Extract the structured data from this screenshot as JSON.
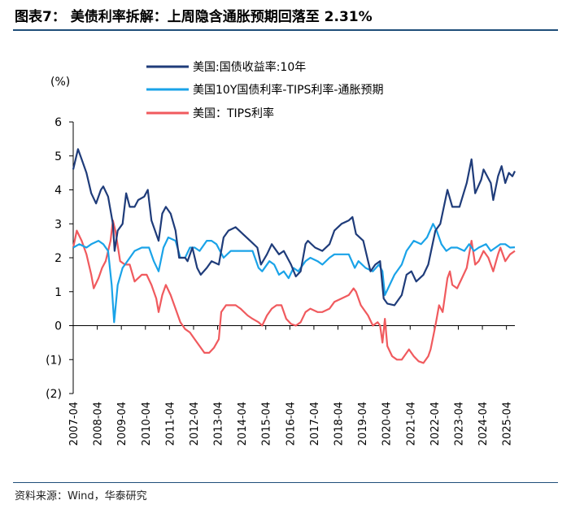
{
  "title": "图表7：  美债利率拆解：上周隐含通胀预期回落至 2.31%",
  "source": "资料来源：Wind，华泰研究",
  "chart_data": {
    "type": "line",
    "ylabel": "(%)",
    "ylim": [
      -2,
      6
    ],
    "yticks": [
      6,
      5,
      4,
      3,
      2,
      1,
      0,
      -1,
      -2
    ],
    "ytick_labels": [
      "6",
      "5",
      "4",
      "3",
      "2",
      "1",
      "0",
      "(1)",
      "(2)"
    ],
    "xlim": [
      2007.25,
      2025.6
    ],
    "xticks": [
      "2007-04",
      "2008-04",
      "2009-04",
      "2010-04",
      "2011-04",
      "2012-04",
      "2013-04",
      "2014-04",
      "2015-04",
      "2016-04",
      "2017-04",
      "2018-04",
      "2019-04",
      "2020-04",
      "2021-04",
      "2022-04",
      "2023-04",
      "2024-04",
      "2025-04"
    ],
    "legend_position": "top-left",
    "series": [
      {
        "name": "美国:国债收益率:10年",
        "color": "#1f3c7a",
        "points": [
          [
            2007.25,
            4.6
          ],
          [
            2007.45,
            5.2
          ],
          [
            2007.6,
            4.9
          ],
          [
            2007.8,
            4.5
          ],
          [
            2008.0,
            3.9
          ],
          [
            2008.2,
            3.6
          ],
          [
            2008.4,
            4.0
          ],
          [
            2008.5,
            4.1
          ],
          [
            2008.7,
            3.8
          ],
          [
            2008.9,
            3.0
          ],
          [
            2008.97,
            2.2
          ],
          [
            2009.1,
            2.8
          ],
          [
            2009.3,
            3.0
          ],
          [
            2009.45,
            3.9
          ],
          [
            2009.6,
            3.5
          ],
          [
            2009.8,
            3.5
          ],
          [
            2009.95,
            3.7
          ],
          [
            2010.2,
            3.8
          ],
          [
            2010.35,
            4.0
          ],
          [
            2010.5,
            3.1
          ],
          [
            2010.8,
            2.5
          ],
          [
            2010.95,
            3.3
          ],
          [
            2011.1,
            3.5
          ],
          [
            2011.3,
            3.3
          ],
          [
            2011.5,
            2.8
          ],
          [
            2011.65,
            2.0
          ],
          [
            2011.9,
            2.0
          ],
          [
            2012.0,
            1.9
          ],
          [
            2012.2,
            2.3
          ],
          [
            2012.4,
            1.7
          ],
          [
            2012.55,
            1.5
          ],
          [
            2012.8,
            1.7
          ],
          [
            2013.0,
            1.9
          ],
          [
            2013.3,
            1.8
          ],
          [
            2013.5,
            2.6
          ],
          [
            2013.7,
            2.8
          ],
          [
            2014.0,
            2.9
          ],
          [
            2014.3,
            2.7
          ],
          [
            2014.6,
            2.5
          ],
          [
            2014.9,
            2.3
          ],
          [
            2015.05,
            1.8
          ],
          [
            2015.3,
            2.1
          ],
          [
            2015.5,
            2.4
          ],
          [
            2015.8,
            2.1
          ],
          [
            2016.0,
            2.2
          ],
          [
            2016.3,
            1.8
          ],
          [
            2016.5,
            1.45
          ],
          [
            2016.7,
            1.6
          ],
          [
            2016.9,
            2.4
          ],
          [
            2017.0,
            2.5
          ],
          [
            2017.3,
            2.3
          ],
          [
            2017.6,
            2.2
          ],
          [
            2017.9,
            2.4
          ],
          [
            2018.1,
            2.8
          ],
          [
            2018.4,
            3.0
          ],
          [
            2018.7,
            3.1
          ],
          [
            2018.85,
            3.2
          ],
          [
            2019.0,
            2.7
          ],
          [
            2019.3,
            2.5
          ],
          [
            2019.6,
            1.6
          ],
          [
            2019.8,
            1.8
          ],
          [
            2020.0,
            1.9
          ],
          [
            2020.15,
            0.8
          ],
          [
            2020.3,
            0.65
          ],
          [
            2020.6,
            0.6
          ],
          [
            2020.9,
            0.9
          ],
          [
            2021.1,
            1.5
          ],
          [
            2021.3,
            1.6
          ],
          [
            2021.5,
            1.3
          ],
          [
            2021.8,
            1.5
          ],
          [
            2022.0,
            1.8
          ],
          [
            2022.3,
            2.8
          ],
          [
            2022.5,
            3.0
          ],
          [
            2022.8,
            4.0
          ],
          [
            2023.0,
            3.5
          ],
          [
            2023.3,
            3.5
          ],
          [
            2023.6,
            4.2
          ],
          [
            2023.8,
            4.9
          ],
          [
            2023.95,
            3.9
          ],
          [
            2024.2,
            4.3
          ],
          [
            2024.3,
            4.6
          ],
          [
            2024.6,
            4.2
          ],
          [
            2024.7,
            3.7
          ],
          [
            2024.9,
            4.4
          ],
          [
            2025.05,
            4.7
          ],
          [
            2025.2,
            4.2
          ],
          [
            2025.35,
            4.5
          ],
          [
            2025.5,
            4.4
          ],
          [
            2025.6,
            4.55
          ]
        ]
      },
      {
        "name": "美国10Y国债利率-TIPS利率-通胀预期",
        "color": "#1aa3e8",
        "points": [
          [
            2007.25,
            2.3
          ],
          [
            2007.5,
            2.4
          ],
          [
            2007.8,
            2.3
          ],
          [
            2008.0,
            2.4
          ],
          [
            2008.3,
            2.5
          ],
          [
            2008.5,
            2.4
          ],
          [
            2008.7,
            2.2
          ],
          [
            2008.85,
            1.2
          ],
          [
            2008.95,
            0.1
          ],
          [
            2009.1,
            1.2
          ],
          [
            2009.3,
            1.7
          ],
          [
            2009.5,
            1.9
          ],
          [
            2009.8,
            2.2
          ],
          [
            2010.1,
            2.3
          ],
          [
            2010.4,
            2.3
          ],
          [
            2010.6,
            1.9
          ],
          [
            2010.8,
            1.6
          ],
          [
            2011.0,
            2.3
          ],
          [
            2011.2,
            2.6
          ],
          [
            2011.5,
            2.5
          ],
          [
            2011.7,
            2.0
          ],
          [
            2011.9,
            2.0
          ],
          [
            2012.1,
            2.3
          ],
          [
            2012.3,
            2.3
          ],
          [
            2012.5,
            2.2
          ],
          [
            2012.8,
            2.5
          ],
          [
            2013.0,
            2.5
          ],
          [
            2013.2,
            2.4
          ],
          [
            2013.5,
            2.0
          ],
          [
            2013.8,
            2.2
          ],
          [
            2014.0,
            2.2
          ],
          [
            2014.4,
            2.2
          ],
          [
            2014.7,
            2.2
          ],
          [
            2014.95,
            1.7
          ],
          [
            2015.1,
            1.6
          ],
          [
            2015.4,
            1.9
          ],
          [
            2015.6,
            1.8
          ],
          [
            2015.8,
            1.5
          ],
          [
            2016.0,
            1.6
          ],
          [
            2016.2,
            1.4
          ],
          [
            2016.4,
            1.7
          ],
          [
            2016.6,
            1.6
          ],
          [
            2016.9,
            1.9
          ],
          [
            2017.1,
            2.0
          ],
          [
            2017.4,
            1.9
          ],
          [
            2017.6,
            1.8
          ],
          [
            2017.9,
            2.0
          ],
          [
            2018.1,
            2.1
          ],
          [
            2018.4,
            2.1
          ],
          [
            2018.7,
            2.1
          ],
          [
            2018.95,
            1.7
          ],
          [
            2019.1,
            1.9
          ],
          [
            2019.4,
            1.7
          ],
          [
            2019.7,
            1.6
          ],
          [
            2019.95,
            1.8
          ],
          [
            2020.1,
            1.6
          ],
          [
            2020.2,
            0.9
          ],
          [
            2020.4,
            1.2
          ],
          [
            2020.6,
            1.5
          ],
          [
            2020.9,
            1.8
          ],
          [
            2021.1,
            2.2
          ],
          [
            2021.4,
            2.5
          ],
          [
            2021.7,
            2.4
          ],
          [
            2021.95,
            2.6
          ],
          [
            2022.2,
            3.0
          ],
          [
            2022.35,
            2.8
          ],
          [
            2022.55,
            2.4
          ],
          [
            2022.75,
            2.2
          ],
          [
            2022.95,
            2.3
          ],
          [
            2023.2,
            2.3
          ],
          [
            2023.5,
            2.2
          ],
          [
            2023.7,
            2.4
          ],
          [
            2023.9,
            2.2
          ],
          [
            2024.1,
            2.3
          ],
          [
            2024.4,
            2.4
          ],
          [
            2024.6,
            2.2
          ],
          [
            2024.8,
            2.3
          ],
          [
            2025.0,
            2.4
          ],
          [
            2025.2,
            2.4
          ],
          [
            2025.4,
            2.3
          ],
          [
            2025.6,
            2.31
          ]
        ]
      },
      {
        "name": "美国：TIPS利率",
        "color": "#f05a5e",
        "points": [
          [
            2007.25,
            2.3
          ],
          [
            2007.4,
            2.8
          ],
          [
            2007.6,
            2.5
          ],
          [
            2007.8,
            2.1
          ],
          [
            2008.0,
            1.5
          ],
          [
            2008.1,
            1.1
          ],
          [
            2008.3,
            1.4
          ],
          [
            2008.45,
            1.7
          ],
          [
            2008.6,
            1.9
          ],
          [
            2008.8,
            2.5
          ],
          [
            2008.9,
            3.1
          ],
          [
            2009.0,
            2.8
          ],
          [
            2009.2,
            1.9
          ],
          [
            2009.4,
            1.8
          ],
          [
            2009.6,
            1.8
          ],
          [
            2009.8,
            1.3
          ],
          [
            2010.1,
            1.5
          ],
          [
            2010.3,
            1.5
          ],
          [
            2010.5,
            1.2
          ],
          [
            2010.7,
            0.8
          ],
          [
            2010.8,
            0.4
          ],
          [
            2010.95,
            0.9
          ],
          [
            2011.1,
            1.2
          ],
          [
            2011.3,
            0.9
          ],
          [
            2011.5,
            0.5
          ],
          [
            2011.7,
            0.1
          ],
          [
            2011.9,
            -0.1
          ],
          [
            2012.1,
            -0.2
          ],
          [
            2012.3,
            -0.4
          ],
          [
            2012.5,
            -0.6
          ],
          [
            2012.7,
            -0.8
          ],
          [
            2012.9,
            -0.8
          ],
          [
            2013.1,
            -0.65
          ],
          [
            2013.3,
            -0.4
          ],
          [
            2013.4,
            0.4
          ],
          [
            2013.6,
            0.6
          ],
          [
            2013.8,
            0.6
          ],
          [
            2014.0,
            0.6
          ],
          [
            2014.2,
            0.5
          ],
          [
            2014.5,
            0.3
          ],
          [
            2014.7,
            0.2
          ],
          [
            2014.95,
            0.1
          ],
          [
            2015.1,
            0.0
          ],
          [
            2015.3,
            0.3
          ],
          [
            2015.5,
            0.5
          ],
          [
            2015.7,
            0.6
          ],
          [
            2015.9,
            0.6
          ],
          [
            2016.1,
            0.2
          ],
          [
            2016.3,
            0.05
          ],
          [
            2016.5,
            0.0
          ],
          [
            2016.7,
            0.1
          ],
          [
            2016.9,
            0.4
          ],
          [
            2017.1,
            0.5
          ],
          [
            2017.4,
            0.4
          ],
          [
            2017.6,
            0.4
          ],
          [
            2017.9,
            0.5
          ],
          [
            2018.1,
            0.7
          ],
          [
            2018.4,
            0.8
          ],
          [
            2018.7,
            0.9
          ],
          [
            2018.9,
            1.1
          ],
          [
            2019.0,
            1.0
          ],
          [
            2019.2,
            0.6
          ],
          [
            2019.5,
            0.3
          ],
          [
            2019.7,
            0.0
          ],
          [
            2019.9,
            0.1
          ],
          [
            2020.0,
            0.0
          ],
          [
            2020.1,
            -0.5
          ],
          [
            2020.2,
            0.2
          ],
          [
            2020.3,
            -0.6
          ],
          [
            2020.5,
            -0.9
          ],
          [
            2020.7,
            -1.0
          ],
          [
            2020.9,
            -1.0
          ],
          [
            2021.0,
            -0.9
          ],
          [
            2021.2,
            -0.7
          ],
          [
            2021.4,
            -0.9
          ],
          [
            2021.6,
            -1.05
          ],
          [
            2021.8,
            -1.1
          ],
          [
            2022.0,
            -0.9
          ],
          [
            2022.1,
            -0.7
          ],
          [
            2022.3,
            0.0
          ],
          [
            2022.45,
            0.6
          ],
          [
            2022.6,
            0.4
          ],
          [
            2022.8,
            1.4
          ],
          [
            2022.9,
            1.6
          ],
          [
            2023.0,
            1.2
          ],
          [
            2023.2,
            1.1
          ],
          [
            2023.4,
            1.4
          ],
          [
            2023.6,
            1.7
          ],
          [
            2023.8,
            2.5
          ],
          [
            2023.95,
            1.8
          ],
          [
            2024.1,
            1.9
          ],
          [
            2024.3,
            2.2
          ],
          [
            2024.5,
            2.0
          ],
          [
            2024.7,
            1.6
          ],
          [
            2024.9,
            2.1
          ],
          [
            2025.0,
            2.3
          ],
          [
            2025.2,
            1.9
          ],
          [
            2025.4,
            2.1
          ],
          [
            2025.6,
            2.2
          ]
        ]
      }
    ]
  }
}
